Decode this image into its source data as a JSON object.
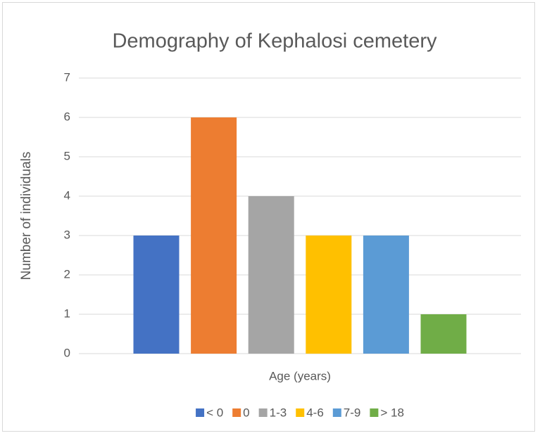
{
  "chart_data": {
    "type": "bar",
    "title": "Demography of Kephalosi cemetery",
    "x_label": "Age (years)",
    "y_label": "Number of individuals",
    "series": [
      {
        "name": "< 0",
        "color": "#4472c4",
        "values": [
          3
        ]
      },
      {
        "name": "0",
        "color": "#ed7d31",
        "values": [
          6
        ]
      },
      {
        "name": "1-3",
        "color": "#a5a5a5",
        "values": [
          4
        ]
      },
      {
        "name": "4-6",
        "color": "#ffc000",
        "values": [
          3
        ]
      },
      {
        "name": "7-9",
        "color": "#5b9bd5",
        "values": [
          3
        ]
      },
      {
        "name": "> 18",
        "color": "#70ad47",
        "values": [
          1
        ]
      }
    ],
    "ylim": [
      0,
      7
    ],
    "yticks": [
      0,
      1,
      2,
      3,
      4,
      5,
      6,
      7
    ],
    "grid": true,
    "legend": "bottom"
  }
}
